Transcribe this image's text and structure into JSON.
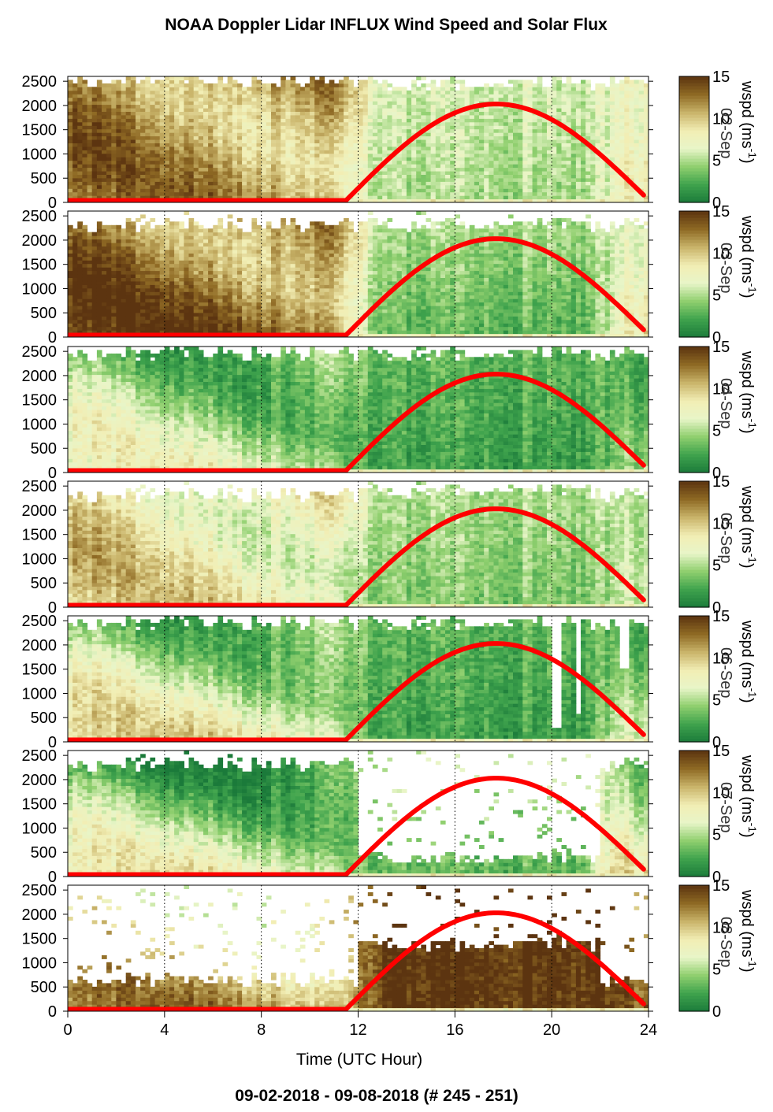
{
  "title": "NOAA Doppler Lidar INFLUX Wind Speed and Solar Flux",
  "footer": "09-02-2018 - 09-08-2018   (# 245 - 251)",
  "colors": {
    "solar_curve": "#ff0000",
    "colormap": [
      "#1b7a3a",
      "#3fa34d",
      "#8fcf6e",
      "#e8f5c8",
      "#f2eeb4",
      "#c9b46a",
      "#8f6a24",
      "#5c3410"
    ]
  },
  "chart_data": {
    "type": "heatmap",
    "xlabel": "Time (UTC Hour)",
    "x_ticks": [
      0,
      4,
      8,
      12,
      16,
      20,
      24
    ],
    "y_ticks": [
      0,
      500,
      1000,
      1500,
      2000,
      2500
    ],
    "xlim": [
      0,
      24
    ],
    "ylim": [
      0,
      2600
    ],
    "grid": "dotted vertical lines at x ticks",
    "colorbar": {
      "label": "wspd (ms-1)",
      "label_text": "wspd (ms",
      "label_superscript": "-1",
      "label_close": ")",
      "ticks": [
        0,
        5,
        10,
        15
      ],
      "range": [
        0,
        15
      ]
    },
    "solar_flux": {
      "rise_hour": 11.5,
      "peak_hour": 17.7,
      "end_hour": 23.8,
      "peak_height": 2030,
      "night_height": 40
    },
    "panels": [
      {
        "day": "02-Sep",
        "topFrac": 1.0,
        "topFracDay": 0.98,
        "lowBand": 11,
        "jetMid": 12,
        "dayHigh": 6,
        "dayLow": 5,
        "eveLow": 5,
        "noData": []
      },
      {
        "day": "03-Sep",
        "topFrac": 0.92,
        "topFracDay": 0.93,
        "lowBand": 13,
        "jetMid": 12,
        "dayHigh": 5,
        "dayLow": 3,
        "eveLow": 4,
        "noData": []
      },
      {
        "day": "04-Sep",
        "topFrac": 0.98,
        "topFracDay": 0.98,
        "lowBand": 6,
        "jetMid": 4,
        "dayHigh": 3,
        "dayLow": 2,
        "eveLow": 2,
        "noData": []
      },
      {
        "day": "05-Sep",
        "topFrac": 0.92,
        "topFracDay": 0.96,
        "lowBand": 8,
        "jetMid": 9,
        "dayHigh": 5,
        "dayLow": 4,
        "eveLow": 3,
        "noData": []
      },
      {
        "day": "06-Sep",
        "topFrac": 0.98,
        "topFracDay": 0.98,
        "lowBand": 8,
        "jetMid": 4,
        "dayHigh": 3,
        "dayLow": 2,
        "eveLow": 4,
        "noData": [
          [
            20.0,
            20.5,
            300,
            2600
          ],
          [
            21.0,
            21.3,
            600,
            2600
          ],
          [
            22.8,
            23.2,
            1500,
            2600
          ]
        ]
      },
      {
        "day": "07-Sep",
        "topFrac": 0.92,
        "topFracDay": 0.15,
        "lowBand": 7,
        "jetMid": 2,
        "dayHigh": 6,
        "dayLow": 3,
        "eveLow": 10,
        "noData": []
      },
      {
        "day": "08-Sep",
        "topFrac": 0.25,
        "topFracDay": 0.55,
        "lowBand": 11,
        "jetMid": 8,
        "dayHigh": 15,
        "dayLow": 15,
        "eveLow": 14,
        "noData": []
      }
    ]
  }
}
